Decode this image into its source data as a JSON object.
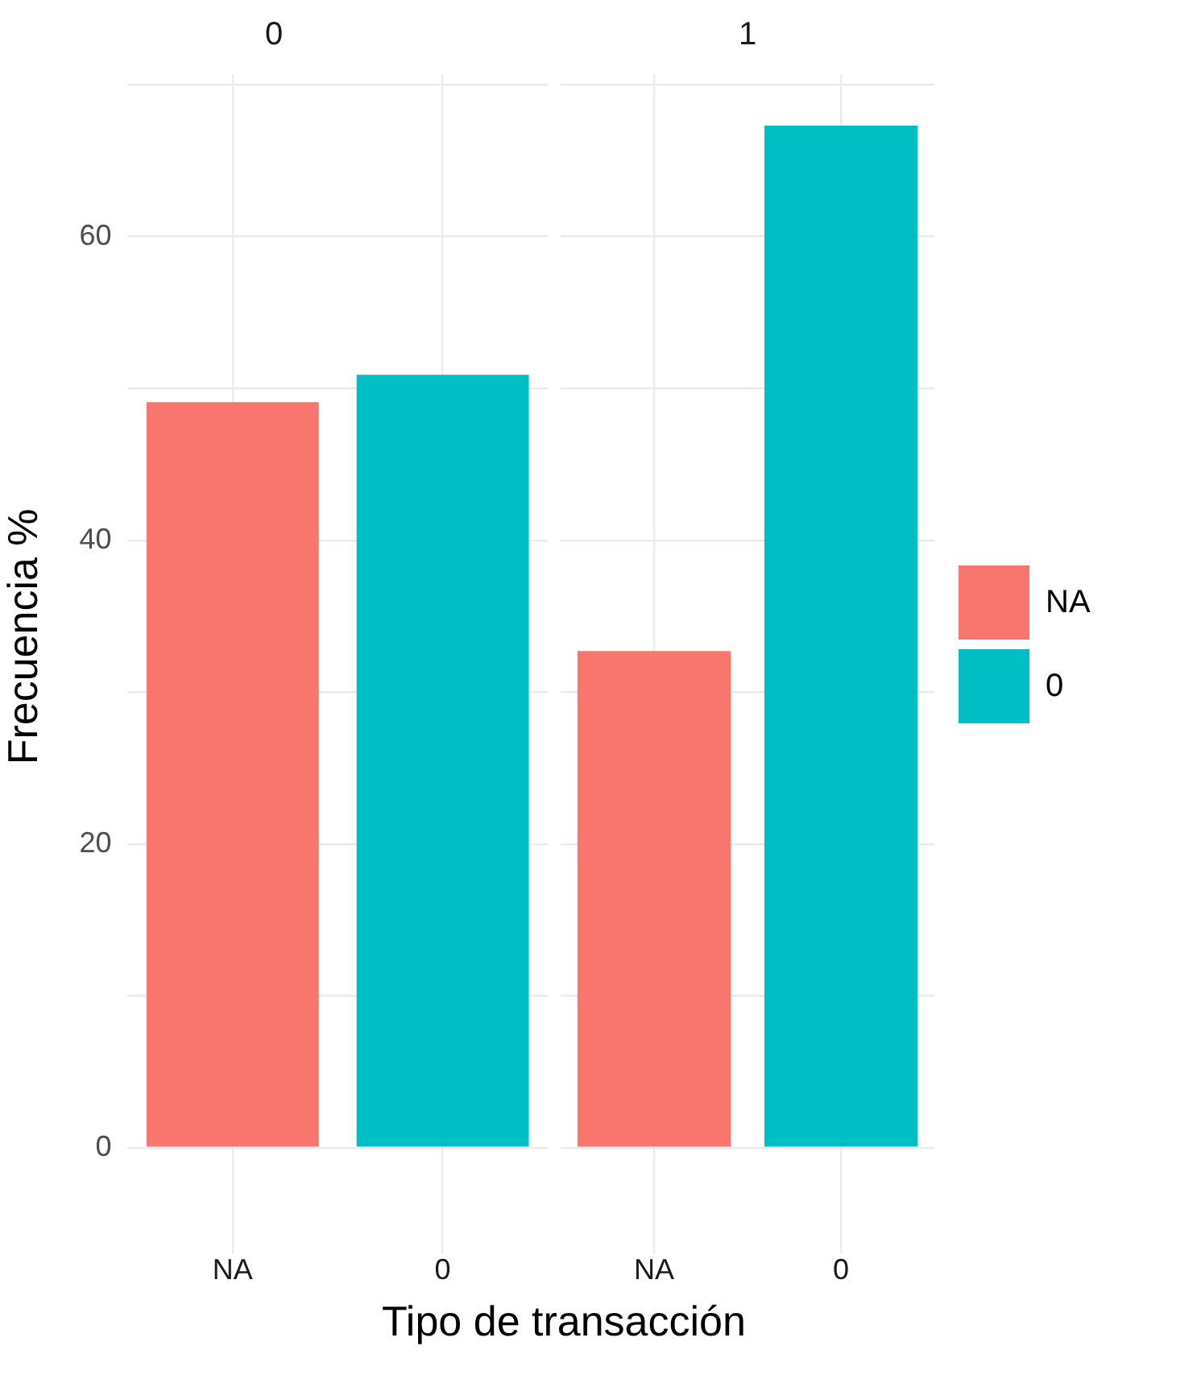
{
  "chart_data": [
    {
      "type": "bar",
      "title": "0",
      "categories": [
        "NA",
        "0"
      ],
      "series": [
        {
          "color": "#f8766d",
          "values": [
            49.1,
            null
          ]
        },
        {
          "color": "#00bfc4",
          "values": [
            null,
            50.9
          ]
        }
      ],
      "ylabel": "Frecuencia %",
      "xlabel": "Tipo de transacción",
      "ylim": [
        -3.4,
        70.7
      ],
      "yticks": [
        0,
        {
          "value": 10,
          "label": null
        },
        20,
        {
          "value": 30,
          "label": null
        },
        40,
        {
          "value": 50,
          "label": null
        },
        60,
        {
          "value": 70,
          "label": null
        }
      ],
      "grid": true
    },
    {
      "type": "bar",
      "title": "1",
      "categories": [
        "NA",
        "0"
      ],
      "series": [
        {
          "name": "NA",
          "color": "#f8766d",
          "values": [
            32.7,
            null
          ]
        },
        {
          "name": "0",
          "color": "#00bfc4",
          "values": [
            null,
            67.3
          ]
        }
      ],
      "ylim": [
        -3.4,
        70.7
      ],
      "yticks": [
        0,
        {
          "value": 10,
          "label": null
        },
        20,
        {
          "value": 30,
          "label": null
        },
        40,
        {
          "value": 50,
          "label": null
        },
        60,
        {
          "value": 70,
          "label": null
        }
      ],
      "grid": true,
      "tick_labels": "x",
      "legend": "right"
    }
  ]
}
